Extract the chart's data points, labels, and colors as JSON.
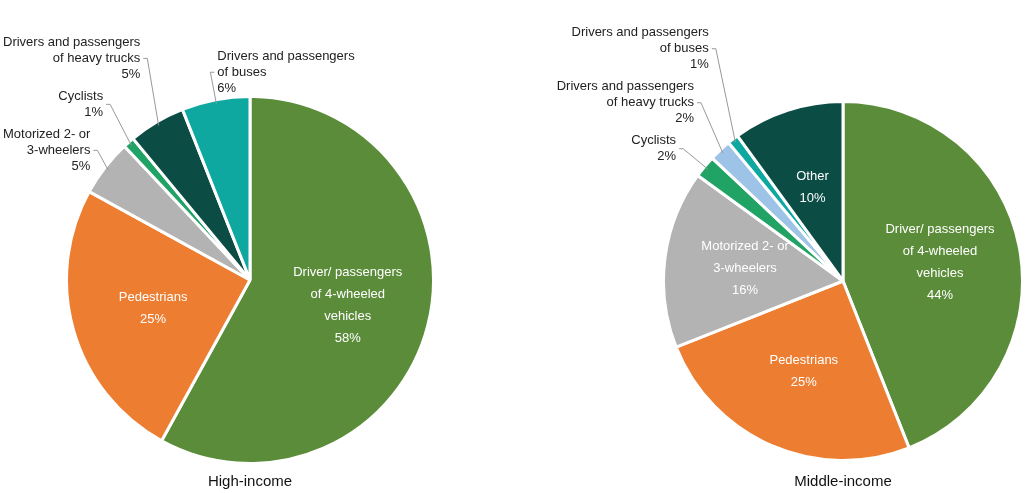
{
  "chart_data": [
    {
      "type": "pie",
      "title": "High-income",
      "categories": [
        "Driver/ passengers of 4-wheeled vehicles",
        "Pedestrians",
        "Motorized 2- or 3-wheelers",
        "Cyclists",
        "Drivers and passengers of heavy trucks",
        "Drivers and passengers of buses"
      ],
      "values": [
        58,
        25,
        5,
        1,
        5,
        6
      ],
      "value_labels": [
        "58%",
        "25%",
        "5%",
        "1%",
        "5%",
        "6%"
      ],
      "colors": [
        "#5b8c3a",
        "#ed7d31",
        "#b3b3b3",
        "#21a366",
        "#0b4d45",
        "#0fa8a0"
      ]
    },
    {
      "type": "pie",
      "title": "Middle-income",
      "categories": [
        "Driver/ passengers of 4-wheeled vehicles",
        "Pedestrians",
        "Motorized 2- or 3-wheelers",
        "Cyclists",
        "Drivers and passengers of heavy trucks",
        "Drivers and passengers of buses",
        "Other"
      ],
      "values": [
        44,
        25,
        16,
        2,
        2,
        1,
        10
      ],
      "value_labels": [
        "44%",
        "25%",
        "16%",
        "2%",
        "2%",
        "1%",
        "10%"
      ],
      "colors": [
        "#5b8c3a",
        "#ed7d31",
        "#b3b3b3",
        "#21a366",
        "#9dc3e6",
        "#0fa8a0",
        "#0b4d45"
      ]
    }
  ]
}
